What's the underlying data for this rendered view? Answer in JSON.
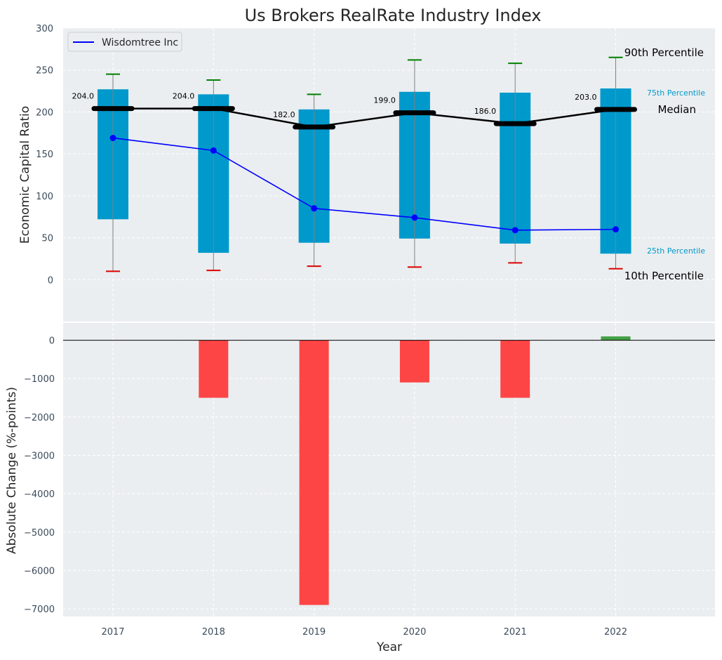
{
  "chart_data": [
    {
      "type": "box-percentile",
      "title": "Us Brokers RealRate Industry Index",
      "xlabel": "Year",
      "ylabel": "Economic Capital Ratio",
      "ylim": [
        -50,
        300
      ],
      "yticks": [
        0,
        50,
        100,
        150,
        200,
        250,
        300
      ],
      "categories": [
        "2017",
        "2018",
        "2019",
        "2020",
        "2021",
        "2022"
      ],
      "p10": [
        10,
        11,
        16,
        15,
        20,
        13
      ],
      "p25": [
        72,
        32,
        44,
        49,
        43,
        31
      ],
      "median": [
        204.0,
        204.0,
        182.0,
        199.0,
        186.0,
        203.0
      ],
      "median_labels": [
        "204.0",
        "204.0",
        "182.0",
        "199.0",
        "186.0",
        "203.0"
      ],
      "p75": [
        227,
        221,
        203,
        224,
        223,
        228
      ],
      "p90": [
        245,
        238,
        221,
        262,
        258,
        265
      ],
      "series": [
        {
          "name": "Wisdomtree Inc",
          "values": [
            169,
            154,
            85,
            74,
            59,
            60
          ]
        }
      ],
      "legend_position": "top-left",
      "percentile_labels": {
        "p90": "90th Percentile",
        "p75": "75th Percentile",
        "median": "Median",
        "p25": "25th Percentile",
        "p10": "10th Percentile"
      },
      "grid": true
    },
    {
      "type": "bar",
      "xlabel": "Year",
      "ylabel": "Absolute Change (%-points)",
      "ylim": [
        -7200,
        450
      ],
      "yticks": [
        0,
        -1000,
        -2000,
        -3000,
        -4000,
        -5000,
        -6000,
        -7000
      ],
      "categories": [
        "2017",
        "2018",
        "2019",
        "2020",
        "2021",
        "2022"
      ],
      "values": [
        0,
        -1500,
        -6900,
        -1100,
        -1500,
        100
      ],
      "grid": true
    }
  ],
  "colors": {
    "background": "#eaeef0",
    "box": "#0099cc",
    "median_line": "#000000",
    "series_line": "#0000ff",
    "p90_cap": "#008000",
    "p10_cap": "#dd0000",
    "whisker": "#808080",
    "bar_negative": "#ff3b3b",
    "bar_positive": "#3c9c3c",
    "percentile_text": "#0099cc"
  }
}
